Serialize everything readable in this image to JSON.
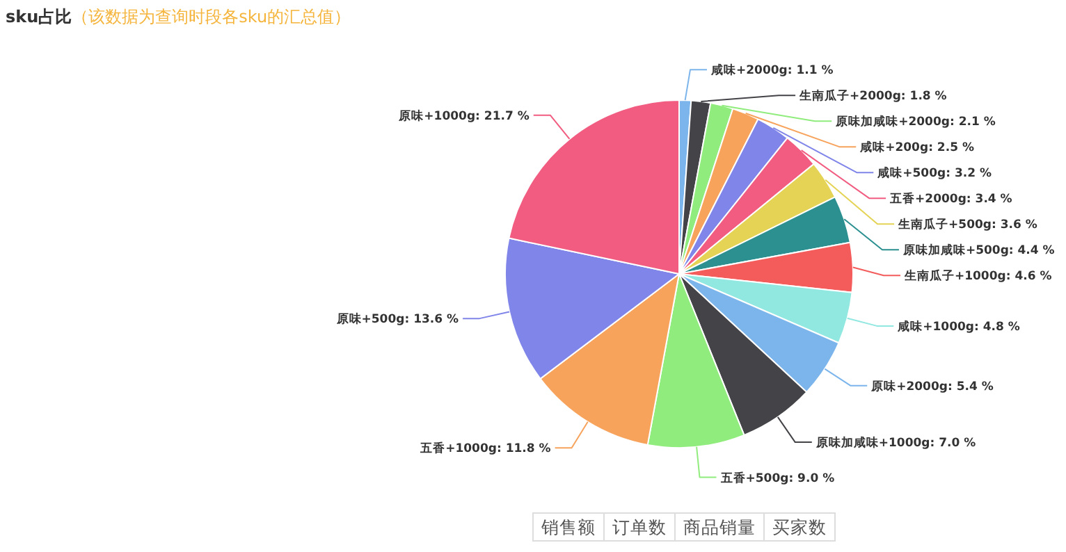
{
  "chart_data": {
    "type": "pie",
    "title": "sku占比",
    "subtitle": "（该数据为查询时段各sku的汇总值）",
    "categories": [
      "咸味+2000g",
      "生南瓜子+2000g",
      "原味加咸味+2000g",
      "咸味+200g",
      "咸味+500g",
      "五香+2000g",
      "生南瓜子+500g",
      "原味加咸味+500g",
      "生南瓜子+1000g",
      "咸味+1000g",
      "原味+2000g",
      "原味加咸味+1000g",
      "五香+500g",
      "五香+1000g",
      "原味+500g",
      "原味+1000g"
    ],
    "values": [
      1.1,
      1.8,
      2.1,
      2.5,
      3.2,
      3.4,
      3.6,
      4.4,
      4.6,
      4.8,
      5.4,
      7.0,
      9.0,
      11.8,
      13.6,
      21.7
    ],
    "colors": [
      "#7cb5ec",
      "#434348",
      "#90ed7d",
      "#f7a35c",
      "#8085e9",
      "#f15c80",
      "#e4d354",
      "#2b908f",
      "#f45b5b",
      "#91e8e1",
      "#7cb5ec",
      "#434348",
      "#90ed7d",
      "#f7a35c",
      "#8085e9",
      "#f15c80"
    ],
    "value_labels": [
      ": 1.1 %",
      ": 1.8 %",
      ": 2.1 %",
      ": 2.5 %",
      ": 3.2 %",
      ": 3.4 %",
      ": 3.6 %",
      ": 4.4 %",
      ": 4.6 %",
      ": 4.8 %",
      ": 5.4 %",
      ": 7.0 %",
      ": 9.0 %",
      ": 11.8 %",
      ": 13.6 %",
      ": 21.7 %"
    ],
    "annotations": [
      "销售额",
      "订单数",
      "商品销量",
      "买家数"
    ]
  }
}
